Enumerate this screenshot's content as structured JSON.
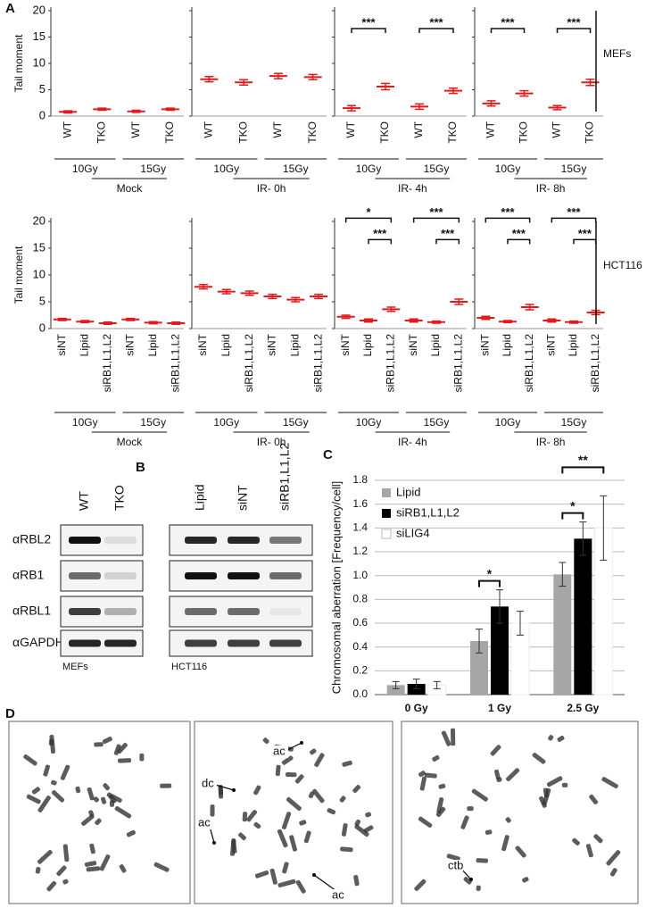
{
  "figure": {
    "panel_labels": [
      "A",
      "B",
      "C",
      "D"
    ]
  },
  "chart_data": [
    {
      "type": "dot",
      "ylabel": "Tail moment",
      "categories": [
        "WT",
        "TKO",
        "WT",
        "TKO"
      ],
      "values": [
        0.8,
        1.3,
        0.9,
        1.3
      ],
      "errors": [
        0.2,
        0.2,
        0.2,
        0.2
      ],
      "color": "#e31a1c",
      "groups": [
        "10Gy",
        "15Gy"
      ],
      "treatment": "Mock",
      "ylim": [
        0,
        20
      ],
      "yticks": [
        0,
        5,
        10,
        15,
        20
      ],
      "significance": []
    },
    {
      "type": "dot",
      "categories": [
        "WT",
        "TKO",
        "WT",
        "TKO"
      ],
      "values": [
        7.0,
        6.4,
        7.6,
        7.4
      ],
      "errors": [
        0.5,
        0.5,
        0.5,
        0.5
      ],
      "color": "#e31a1c",
      "groups": [
        "10Gy",
        "15Gy"
      ],
      "treatment": "IR- 0h",
      "ylim": [
        0,
        20
      ],
      "yticks": [
        0,
        5,
        10,
        15,
        20
      ],
      "significance": []
    },
    {
      "type": "dot",
      "categories": [
        "WT",
        "TKO",
        "WT",
        "TKO"
      ],
      "values": [
        1.5,
        5.6,
        1.8,
        4.8
      ],
      "errors": [
        0.5,
        0.6,
        0.5,
        0.5
      ],
      "color": "#e31a1c",
      "groups": [
        "10Gy",
        "15Gy"
      ],
      "treatment": "IR- 4h",
      "ylim": [
        0,
        20
      ],
      "yticks": [
        0,
        5,
        10,
        15,
        20
      ],
      "significance": [
        {
          "from": 0,
          "to": 1,
          "label": "***"
        },
        {
          "from": 2,
          "to": 3,
          "label": "***"
        }
      ]
    },
    {
      "type": "dot",
      "categories": [
        "WT",
        "TKO",
        "WT",
        "TKO"
      ],
      "values": [
        2.4,
        4.3,
        1.6,
        6.4
      ],
      "errors": [
        0.5,
        0.5,
        0.4,
        0.6
      ],
      "color": "#e31a1c",
      "groups": [
        "10Gy",
        "15Gy"
      ],
      "treatment": "IR- 8h",
      "ylim": [
        0,
        20
      ],
      "yticks": [
        0,
        5,
        10,
        15,
        20
      ],
      "significance": [
        {
          "from": 0,
          "to": 1,
          "label": "***"
        },
        {
          "from": 2,
          "to": 3,
          "label": "***"
        }
      ],
      "side_label": "MEFs"
    },
    {
      "type": "dot",
      "ylabel": "Tail moment",
      "categories": [
        "siNT",
        "Lipid",
        "siRB1,L1,L2",
        "siNT",
        "Lipid",
        "siRB1,L1,L2"
      ],
      "values": [
        1.7,
        1.3,
        1.0,
        1.7,
        1.1,
        1.0
      ],
      "errors": [
        0.2,
        0.2,
        0.2,
        0.2,
        0.2,
        0.2
      ],
      "color": "#e31a1c",
      "groups": [
        "10Gy",
        "15Gy"
      ],
      "treatment": "Mock",
      "ylim": [
        0,
        20
      ],
      "yticks": [
        0,
        5,
        10,
        15,
        20
      ],
      "significance": []
    },
    {
      "type": "dot",
      "categories": [
        "siNT",
        "Lipid",
        "siRB1,L1,L2",
        "siNT",
        "Lipid",
        "siRB1,L1,L2"
      ],
      "values": [
        7.8,
        6.9,
        6.6,
        6.0,
        5.4,
        6.0
      ],
      "errors": [
        0.4,
        0.4,
        0.4,
        0.4,
        0.4,
        0.4
      ],
      "color": "#e31a1c",
      "groups": [
        "10Gy",
        "15Gy"
      ],
      "treatment": "IR- 0h",
      "ylim": [
        0,
        20
      ],
      "yticks": [
        0,
        5,
        10,
        15,
        20
      ],
      "significance": []
    },
    {
      "type": "dot",
      "categories": [
        "siNT",
        "Lipid",
        "siRB1,L1,L2",
        "siNT",
        "Lipid",
        "siRB1,L1,L2"
      ],
      "values": [
        2.2,
        1.5,
        3.6,
        1.5,
        1.2,
        5.0
      ],
      "errors": [
        0.3,
        0.3,
        0.4,
        0.3,
        0.2,
        0.5
      ],
      "color": "#e31a1c",
      "groups": [
        "10Gy",
        "15Gy"
      ],
      "treatment": "IR- 4h",
      "ylim": [
        0,
        20
      ],
      "yticks": [
        0,
        5,
        10,
        15,
        20
      ],
      "significance": [
        {
          "from": 0,
          "to": 2,
          "label": "*"
        },
        {
          "from": 1,
          "to": 2,
          "label": "***"
        },
        {
          "from": 3,
          "to": 5,
          "label": "***"
        },
        {
          "from": 4,
          "to": 5,
          "label": "***"
        }
      ]
    },
    {
      "type": "dot",
      "categories": [
        "siNT",
        "Lipid",
        "siRB1,L1,L2",
        "siNT",
        "Lipid",
        "siRB1,L1,L2"
      ],
      "values": [
        2.0,
        1.3,
        4.0,
        1.5,
        1.2,
        3.0
      ],
      "errors": [
        0.3,
        0.2,
        0.5,
        0.3,
        0.2,
        0.4
      ],
      "color": "#e31a1c",
      "groups": [
        "10Gy",
        "15Gy"
      ],
      "treatment": "IR- 8h",
      "ylim": [
        0,
        20
      ],
      "yticks": [
        0,
        5,
        10,
        15,
        20
      ],
      "significance": [
        {
          "from": 0,
          "to": 2,
          "label": "***"
        },
        {
          "from": 1,
          "to": 2,
          "label": "***"
        },
        {
          "from": 3,
          "to": 5,
          "label": "***"
        },
        {
          "from": 4,
          "to": 5,
          "label": "***"
        }
      ],
      "side_label": "HCT116"
    },
    {
      "type": "bar",
      "ylabel": "Chromosomal aberration [Frequency/cell]",
      "categories": [
        "0 Gy",
        "1 Gy",
        "2.5 Gy"
      ],
      "series": [
        {
          "name": "Lipid",
          "color": "#a6a6a6",
          "values": [
            0.08,
            0.45,
            1.01
          ],
          "errors": [
            0.03,
            0.1,
            0.1
          ]
        },
        {
          "name": "siRB1,L1,L2",
          "color": "#000000",
          "values": [
            0.09,
            0.74,
            1.31
          ],
          "errors": [
            0.04,
            0.14,
            0.14
          ]
        },
        {
          "name": "siLIG4",
          "color": "#ffffff",
          "values": [
            0.08,
            0.6,
            1.4
          ],
          "errors": [
            0.03,
            0.1,
            0.27
          ]
        }
      ],
      "ylim": [
        0,
        1.8
      ],
      "yticks": [
        {
          "value": 0,
          "label": "0.0"
        },
        0.2,
        0.4,
        0.6,
        0.8,
        {
          "value": 1,
          "label": "1.0"
        },
        1.2,
        1.4,
        1.6,
        1.8
      ],
      "grid": true,
      "significance": [
        {
          "category": 1,
          "from": 0,
          "to": 1,
          "label": "*"
        },
        {
          "category": 2,
          "from": 0,
          "to": 1,
          "label": "*"
        },
        {
          "category": 2,
          "from": 0,
          "to": 2,
          "label": "**"
        }
      ]
    }
  ],
  "blot": {
    "columns_left": [
      "WT",
      "TKO"
    ],
    "columns_right": [
      "Lipid",
      "siNT",
      "siRB1,L1,L2"
    ],
    "rows": [
      "αRBL2",
      "αRB1",
      "αRBL1",
      "αGAPDH"
    ],
    "cells": [
      "MEFs",
      "HCT116"
    ]
  },
  "micrograph_labels": [
    [
      "ac",
      "dc",
      "ac",
      "ac"
    ],
    [
      "ctb"
    ]
  ]
}
